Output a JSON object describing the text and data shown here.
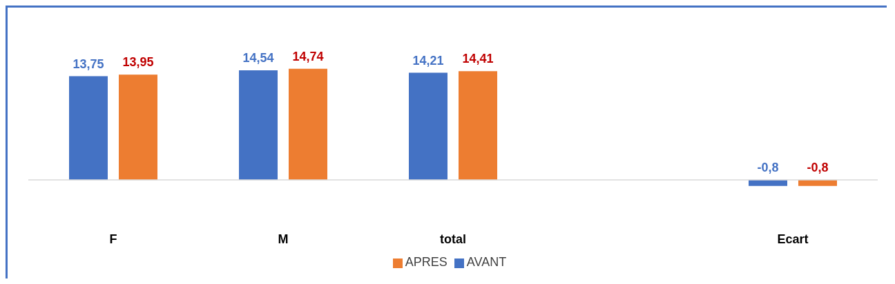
{
  "chart_data": {
    "type": "bar",
    "categories": [
      "F",
      "M",
      "total",
      null,
      "Ecart"
    ],
    "series": [
      {
        "name": "AVANT",
        "color": "#4472c4",
        "values": [
          13.75,
          14.54,
          14.21,
          null,
          -0.8
        ],
        "value_labels": [
          "13,75",
          "14,54",
          "14,21",
          null,
          "-0,8"
        ]
      },
      {
        "name": "APRES",
        "color": "#ed7d31",
        "values": [
          13.95,
          14.74,
          14.41,
          null,
          -0.8
        ],
        "value_labels": [
          "13,95",
          "14,74",
          "14,41",
          null,
          "-0,8"
        ]
      }
    ],
    "legend": "bottom",
    "grid": false
  }
}
